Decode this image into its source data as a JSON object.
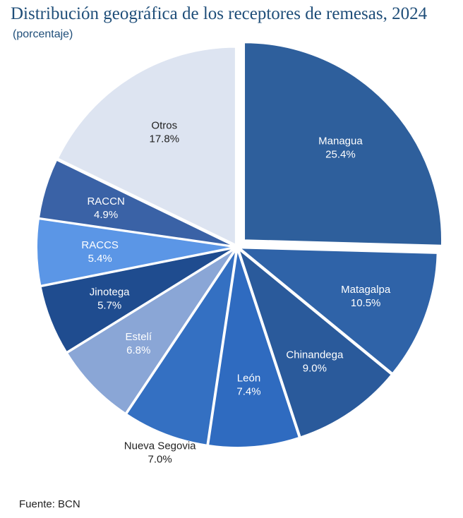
{
  "title": "Distribución geográfica de los receptores de remesas, 2024",
  "subtitle": "(porcentaje)",
  "source": "Fuente: BCN",
  "chart_data": {
    "type": "pie",
    "title": "Distribución geográfica de los receptores de remesas, 2024",
    "subtitle": "(porcentaje)",
    "unit": "%",
    "slices": [
      {
        "label": "Managua",
        "value": 25.4,
        "value_label": "25.4%",
        "color": "#2e5f9c",
        "text_color": "#ffffff",
        "exploded": true
      },
      {
        "label": "Matagalpa",
        "value": 10.5,
        "value_label": "10.5%",
        "color": "#2f63a8",
        "text_color": "#ffffff"
      },
      {
        "label": "Chinandega",
        "value": 9.0,
        "value_label": "9.0%",
        "color": "#2a5a9b",
        "text_color": "#ffffff"
      },
      {
        "label": "León",
        "value": 7.4,
        "value_label": "7.4%",
        "color": "#2f6bc0",
        "text_color": "#ffffff"
      },
      {
        "label": "Nueva Segovia",
        "value": 7.0,
        "value_label": "7.0%",
        "color": "#3470c2",
        "text_color": "#222222",
        "label_outside": true
      },
      {
        "label": "Estelí",
        "value": 6.8,
        "value_label": "6.8%",
        "color": "#8aa6d6",
        "text_color": "#ffffff"
      },
      {
        "label": "Jinotega",
        "value": 5.7,
        "value_label": "5.7%",
        "color": "#1f4c8f",
        "text_color": "#ffffff"
      },
      {
        "label": "RACCS",
        "value": 5.4,
        "value_label": "5.4%",
        "color": "#5b96e6",
        "text_color": "#ffffff"
      },
      {
        "label": "RACCN",
        "value": 4.9,
        "value_label": "4.9%",
        "color": "#3a62a6",
        "text_color": "#ffffff"
      },
      {
        "label": "Otros",
        "value": 17.8,
        "value_label": "17.8%",
        "color": "#dde4f1",
        "text_color": "#222222"
      }
    ]
  }
}
